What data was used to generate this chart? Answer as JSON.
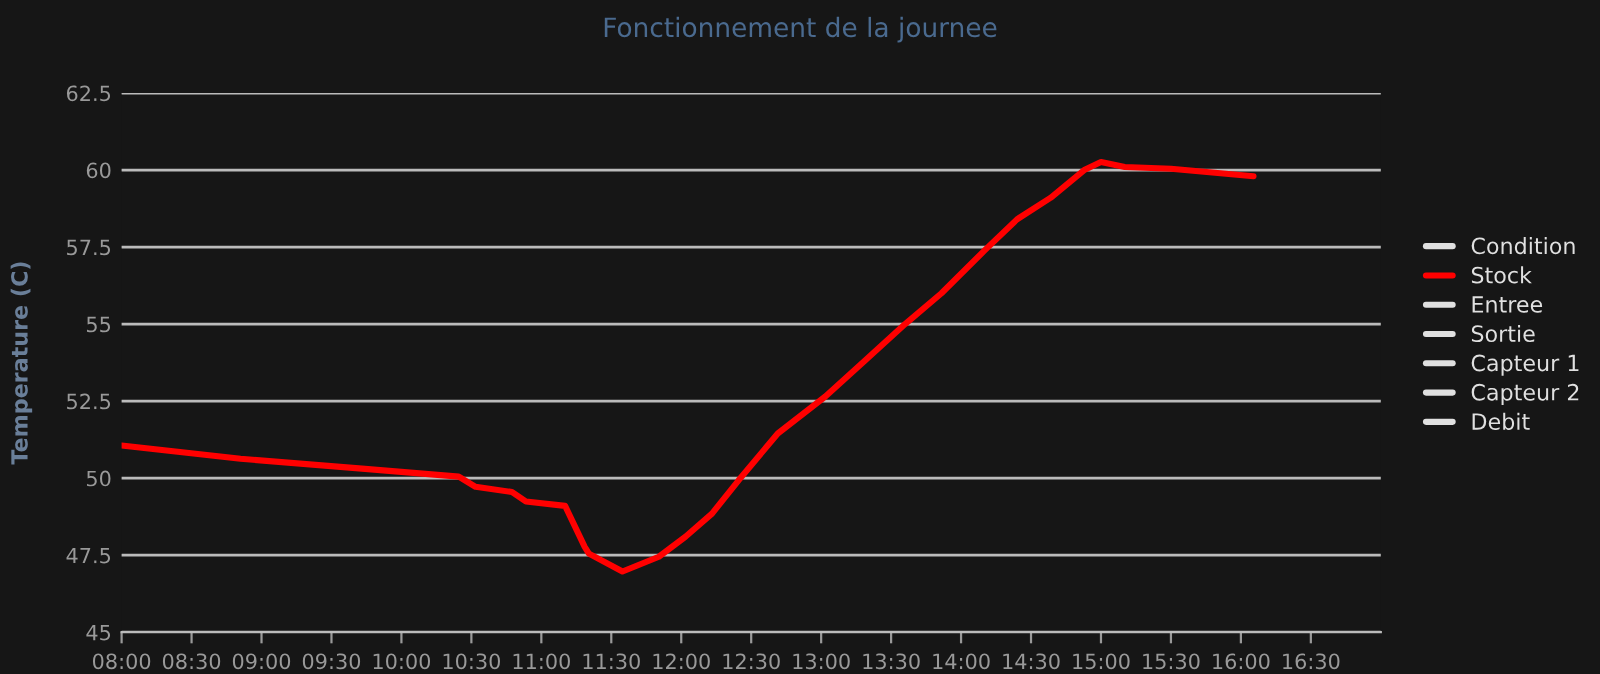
{
  "chart_data": {
    "type": "line",
    "title": "Fonctionnement de la journee",
    "ylabel": "Temperature (C)",
    "series": [
      {
        "name": "Condition",
        "color": "#e0e0e0"
      },
      {
        "name": "Stock",
        "color": "#ff0000",
        "x": [
          8.0,
          8.85,
          9.74,
          10.41,
          10.53,
          10.79,
          10.89,
          11.17,
          11.31,
          11.34,
          11.58,
          11.84,
          12.03,
          12.22,
          12.41,
          12.69,
          13.03,
          13.31,
          13.6,
          13.86,
          14.17,
          14.4,
          14.64,
          14.88,
          15.0,
          15.17,
          15.5,
          16.09
        ],
        "values": [
          51.06,
          50.63,
          50.3,
          50.05,
          49.72,
          49.55,
          49.24,
          49.1,
          47.77,
          47.55,
          46.97,
          47.45,
          48.1,
          48.85,
          49.93,
          51.45,
          52.65,
          53.8,
          55.0,
          56.0,
          57.4,
          58.4,
          59.1,
          60.0,
          60.26,
          60.1,
          60.04,
          59.8
        ]
      },
      {
        "name": "Entree",
        "color": "#e0e0e0"
      },
      {
        "name": "Sortie",
        "color": "#e0e0e0"
      },
      {
        "name": "Capteur 1",
        "color": "#e0e0e0"
      },
      {
        "name": "Capteur 2",
        "color": "#e0e0e0"
      },
      {
        "name": "Debit",
        "color": "#e0e0e0"
      }
    ],
    "xlim": [
      8,
      17
    ],
    "xticks": [
      {
        "value": 8,
        "label": "08:00"
      },
      {
        "value": 8.5,
        "label": "08:30"
      },
      {
        "value": 9,
        "label": "09:00"
      },
      {
        "value": 9.5,
        "label": "09:30"
      },
      {
        "value": 10,
        "label": "10:00"
      },
      {
        "value": 10.5,
        "label": "10:30"
      },
      {
        "value": 11,
        "label": "11:00"
      },
      {
        "value": 11.5,
        "label": "11:30"
      },
      {
        "value": 12,
        "label": "12:00"
      },
      {
        "value": 12.5,
        "label": "12:30"
      },
      {
        "value": 13,
        "label": "13:00"
      },
      {
        "value": 13.5,
        "label": "13:30"
      },
      {
        "value": 14,
        "label": "14:00"
      },
      {
        "value": 14.5,
        "label": "14:30"
      },
      {
        "value": 15,
        "label": "15:00"
      },
      {
        "value": 15.5,
        "label": "15:30"
      },
      {
        "value": 16,
        "label": "16:00"
      },
      {
        "value": 16.5,
        "label": "16:30"
      }
    ],
    "ylim": [
      45,
      62.5
    ],
    "yticks": [
      45,
      47.5,
      50,
      52.5,
      55,
      57.5,
      60,
      62.5
    ],
    "grid": "y",
    "legend": "right",
    "marker": "none",
    "line_style": "solid"
  }
}
